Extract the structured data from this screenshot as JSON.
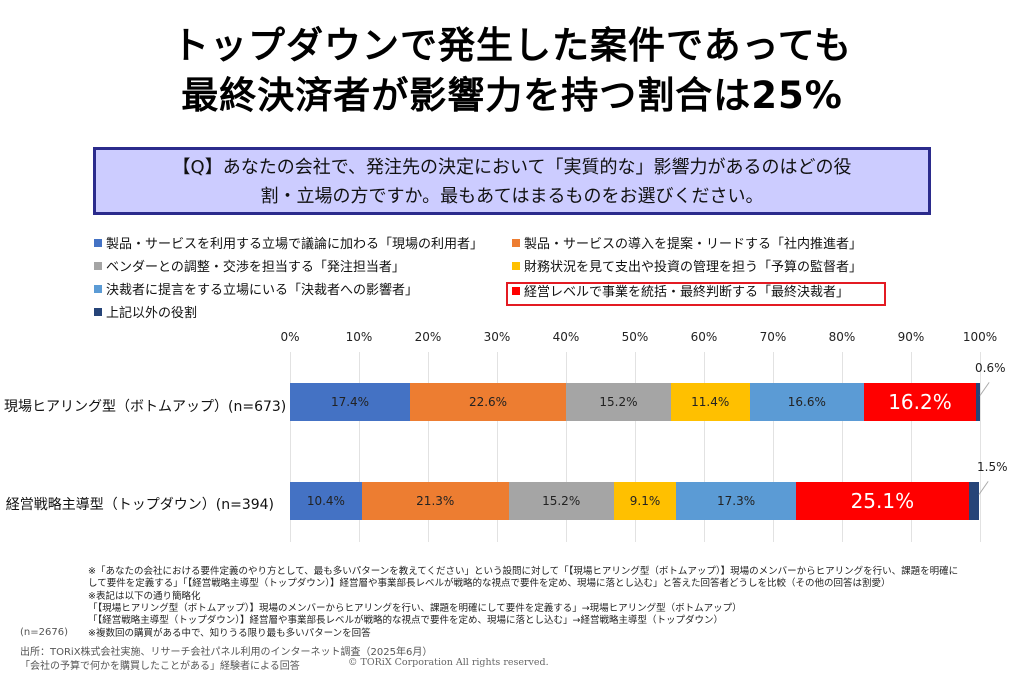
{
  "title": {
    "line1": "トップダウンで発生した案件であっても",
    "line2": "最終決済者が影響力を持つ割合は25%"
  },
  "question": {
    "line1": "【Q】あなたの会社で、発注先の決定において「実質的な」影響力があるのはどの役",
    "line2": "割・立場の方ですか。最もあてはまるものをお選びください。"
  },
  "chart_data": {
    "type": "bar",
    "orientation": "horizontal",
    "stacked": true,
    "percent_axis": true,
    "xlim": [
      0,
      100
    ],
    "x_ticks": [
      "0%",
      "10%",
      "20%",
      "30%",
      "40%",
      "50%",
      "60%",
      "70%",
      "80%",
      "90%",
      "100%"
    ],
    "grid": true,
    "legend_position": "top",
    "categories": [
      "現場ヒアリング型（ボトムアップ）(n=673)",
      "経営戦略主導型（トップダウン）(n=394)"
    ],
    "series": [
      {
        "name": "製品・サービスを利用する立場で議論に加わる「現場の利用者」",
        "color": "#4472c4",
        "values": [
          17.4,
          10.4
        ],
        "labels": [
          "17.4%",
          "10.4%"
        ]
      },
      {
        "name": "製品・サービスの導入を提案・リードする「社内推進者」",
        "color": "#ed7d31",
        "values": [
          22.6,
          21.3
        ],
        "labels": [
          "22.6%",
          "21.3%"
        ]
      },
      {
        "name": "ベンダーとの調整・交渉を担当する「発注担当者」",
        "color": "#a5a5a5",
        "values": [
          15.2,
          15.2
        ],
        "labels": [
          "15.2%",
          "15.2%"
        ]
      },
      {
        "name": "財務状況を見て支出や投資の管理を担う「予算の監督者」",
        "color": "#ffc000",
        "values": [
          11.4,
          9.1
        ],
        "labels": [
          "11.4%",
          "9.1%"
        ]
      },
      {
        "name": "決裁者に提言をする立場にいる「決裁者への影響者」",
        "color": "#5b9bd5",
        "values": [
          16.6,
          17.3
        ],
        "labels": [
          "16.6%",
          "17.3%"
        ]
      },
      {
        "name": "経営レベルで事業を統括・最終判断する「最終決裁者」",
        "color": "#ff0000",
        "values": [
          16.2,
          25.1
        ],
        "labels": [
          "16.2%",
          "25.1%"
        ],
        "highlight": true
      },
      {
        "name": "上記以外の役割",
        "color": "#264478",
        "values": [
          0.6,
          1.5
        ],
        "labels": [
          "0.6%",
          "1.5%"
        ]
      }
    ]
  },
  "notes": [
    "※「あなたの会社における要件定義のやり方として、最も多いパターンを教えてください」という設問に対して「【現場ヒアリング型（ボトムアップ）】現場のメンバーからヒアリングを行い、課題を明確に",
    "して要件を定義する」「【経営戦略主導型（トップダウン）】経営層や事業部長レベルが戦略的な視点で要件を定め、現場に落とし込む」と答えた回答者どうしを比較（その他の回答は割愛）",
    "※表記は以下の通り簡略化",
    "「【現場ヒアリング型（ボトムアップ）】現場のメンバーからヒアリングを行い、課題を明確にして要件を定義する」→現場ヒアリング型（ボトムアップ）",
    "「【経営戦略主導型（トップダウン）】経営層や事業部長レベルが戦略的な視点で要件を定め、現場に落とし込む」→経営戦略主導型（トップダウン）",
    "※複数回の購買がある中で、知りうる限り最も多いパターンを回答"
  ],
  "total_n": "(n=2676)",
  "source": {
    "line1": "出所：TORiX株式会社実施、リサーチ会社パネル利用のインターネット調査（2025年6月）",
    "line2": "「会社の予算で何かを購買したことがある」経験者による回答"
  },
  "copyright": "© TORiX Corporation All rights reserved."
}
